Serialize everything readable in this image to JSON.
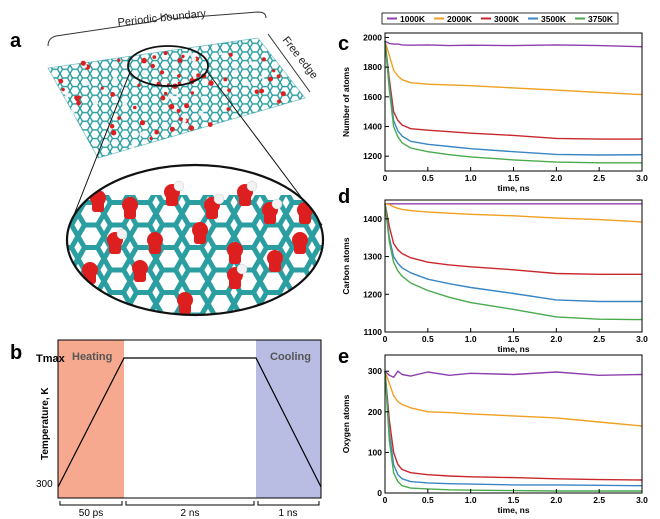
{
  "panel_labels": {
    "a": "a",
    "b": "b",
    "c": "c",
    "d": "d",
    "e": "e"
  },
  "panel_a": {
    "periodic_label": "Periodic boundary",
    "edge_label": "Free edge"
  },
  "colors": {
    "1000K": "#8e3fae",
    "2000K": "#f0a020",
    "3000K": "#c8282c",
    "3500K": "#3a86c4",
    "3750K": "#4aaa4e",
    "heating": "#f6a98e",
    "cooling": "#b9bde3",
    "carbon": "#2b9ea1",
    "oxygen": "#dd1f1f",
    "hydrogen": "#f2f2f2"
  },
  "legend": [
    "1000K",
    "2000K",
    "3000K",
    "3500K",
    "3750K"
  ],
  "panel_b": {
    "y_label": "Temperature, K",
    "tmax_label": "Tmax",
    "t300_label": "300",
    "heating_label": "Heating",
    "cooling_label": "Cooling",
    "segments": [
      "50 ps",
      "2 ns",
      "1 ns"
    ]
  },
  "chart_data": [
    {
      "type": "line",
      "panel": "c",
      "xlabel": "time, ns",
      "ylabel": "Number of atoms",
      "xlim": [
        0,
        3.0
      ],
      "ylim": [
        1100,
        2030
      ],
      "xticks": [
        0,
        0.5,
        1.0,
        1.5,
        2.0,
        2.5,
        3.0
      ],
      "xtick_labels": [
        "0",
        "0.5",
        "1.0",
        "1.5",
        "2.0",
        "2.5",
        "3.0"
      ],
      "yticks": [
        1200,
        1400,
        1600,
        1800,
        2000
      ],
      "x": [
        0,
        0.05,
        0.1,
        0.15,
        0.2,
        0.3,
        0.5,
        0.75,
        1.0,
        1.5,
        2.0,
        2.5,
        3.0
      ],
      "series": [
        {
          "name": "1000K",
          "values": [
            1975,
            1960,
            1955,
            1955,
            1950,
            1948,
            1950,
            1945,
            1948,
            1945,
            1950,
            1945,
            1938
          ]
        },
        {
          "name": "2000K",
          "values": [
            1975,
            1880,
            1780,
            1740,
            1715,
            1695,
            1685,
            1680,
            1675,
            1660,
            1645,
            1630,
            1615
          ]
        },
        {
          "name": "3000K",
          "values": [
            1975,
            1720,
            1500,
            1440,
            1410,
            1385,
            1375,
            1365,
            1355,
            1340,
            1320,
            1315,
            1315
          ]
        },
        {
          "name": "3500K",
          "values": [
            1975,
            1680,
            1440,
            1370,
            1335,
            1300,
            1280,
            1265,
            1250,
            1230,
            1212,
            1208,
            1210
          ]
        },
        {
          "name": "3750K",
          "values": [
            1975,
            1650,
            1400,
            1330,
            1290,
            1255,
            1230,
            1210,
            1195,
            1175,
            1160,
            1155,
            1155
          ]
        }
      ]
    },
    {
      "type": "line",
      "panel": "d",
      "xlabel": "time, ns",
      "ylabel": "Carbon atoms",
      "xlim": [
        0,
        3.0
      ],
      "ylim": [
        1100,
        1450
      ],
      "xticks": [
        0,
        0.5,
        1.0,
        1.5,
        2.0,
        2.5,
        3.0
      ],
      "xtick_labels": [
        "0",
        "0.5",
        "1.0",
        "1.5",
        "2.0",
        "2.5",
        "3.0"
      ],
      "yticks": [
        1100,
        1200,
        1300,
        1400
      ],
      "x": [
        0,
        0.05,
        0.1,
        0.15,
        0.2,
        0.3,
        0.5,
        0.75,
        1.0,
        1.5,
        2.0,
        2.5,
        3.0
      ],
      "series": [
        {
          "name": "1000K",
          "values": [
            1440,
            1440,
            1440,
            1440,
            1440,
            1440,
            1440,
            1440,
            1440,
            1440,
            1440,
            1440,
            1440
          ]
        },
        {
          "name": "2000K",
          "values": [
            1440,
            1438,
            1432,
            1428,
            1425,
            1422,
            1418,
            1415,
            1412,
            1408,
            1402,
            1398,
            1392
          ]
        },
        {
          "name": "3000K",
          "values": [
            1440,
            1380,
            1335,
            1318,
            1308,
            1297,
            1285,
            1278,
            1273,
            1265,
            1255,
            1253,
            1253
          ]
        },
        {
          "name": "3500K",
          "values": [
            1440,
            1350,
            1300,
            1282,
            1270,
            1257,
            1240,
            1228,
            1218,
            1202,
            1185,
            1181,
            1181
          ]
        },
        {
          "name": "3750K",
          "values": [
            1440,
            1340,
            1285,
            1262,
            1248,
            1230,
            1210,
            1192,
            1178,
            1160,
            1140,
            1134,
            1133
          ]
        }
      ]
    },
    {
      "type": "line",
      "panel": "e",
      "xlabel": "time, ns",
      "ylabel": "Oxygen atoms",
      "xlim": [
        0,
        3.0
      ],
      "ylim": [
        0,
        340
      ],
      "xticks": [
        0,
        0.5,
        1.0,
        1.5,
        2.0,
        2.5,
        3.0
      ],
      "xtick_labels": [
        "0",
        "0.5",
        "1.0",
        "1.5",
        "2.0",
        "2.5",
        "3.0"
      ],
      "yticks": [
        0,
        100,
        200,
        300
      ],
      "x": [
        0,
        0.05,
        0.1,
        0.15,
        0.2,
        0.3,
        0.5,
        0.75,
        1.0,
        1.5,
        2.0,
        2.5,
        3.0
      ],
      "series": [
        {
          "name": "1000K",
          "values": [
            300,
            290,
            285,
            300,
            292,
            288,
            298,
            290,
            295,
            292,
            298,
            290,
            292
          ]
        },
        {
          "name": "2000K",
          "values": [
            300,
            270,
            240,
            225,
            218,
            210,
            200,
            198,
            195,
            190,
            185,
            175,
            165
          ]
        },
        {
          "name": "3000K",
          "values": [
            300,
            180,
            100,
            70,
            58,
            50,
            45,
            42,
            40,
            38,
            35,
            33,
            32
          ]
        },
        {
          "name": "3500K",
          "values": [
            300,
            150,
            70,
            45,
            35,
            28,
            25,
            23,
            22,
            20,
            20,
            19,
            18
          ]
        },
        {
          "name": "3750K",
          "values": [
            300,
            130,
            50,
            28,
            18,
            12,
            10,
            8,
            7,
            6,
            5,
            5,
            5
          ]
        }
      ]
    }
  ]
}
